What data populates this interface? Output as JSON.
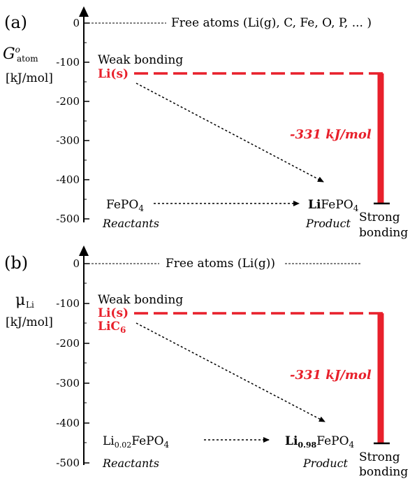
{
  "panel_a": {
    "label": "(a)",
    "ylabel_symbol": "G",
    "ylabel_sup": "o",
    "ylabel_sub": "atom",
    "ylabel_unit": "[kJ/mol]",
    "ticks": [
      "0",
      "-100",
      "-200",
      "-300",
      "-400",
      "-500"
    ],
    "top_label": "Free atoms (Li(g), C, Fe, O, P, ... )",
    "weak_bonding": "Weak bonding",
    "li_s": "Li(s)",
    "energy": "-331 kJ/mol",
    "reactant_formula_base": "FePO",
    "reactant_formula_sub": "4",
    "reactants_caption": "Reactants",
    "product_bold": "Li",
    "product_rest": "FePO",
    "product_sub": "4",
    "product_caption": "Product",
    "strong_line1": "Strong",
    "strong_line2": "bonding"
  },
  "panel_b": {
    "label": "(b)",
    "ylabel_symbol": "μ",
    "ylabel_sub": "Li",
    "ylabel_unit": "[kJ/mol]",
    "ticks": [
      "0",
      "-100",
      "-200",
      "-300",
      "-400",
      "-500"
    ],
    "top_label": "Free atoms (Li(g))",
    "weak_bonding": "Weak bonding",
    "li_s": "Li(s)",
    "lic6_base": "LiC",
    "lic6_sub": "6",
    "energy": "-331 kJ/mol",
    "reactant_li": "Li",
    "reactant_sub": "0.02",
    "reactant_rest": "FePO",
    "reactant_rest_sub": "4",
    "reactants_caption": "Reactants",
    "product_bold": "Li",
    "product_bold_sub": "0.98",
    "product_rest": "FePO",
    "product_sub": "4",
    "product_caption": "Product",
    "strong_line1": "Strong",
    "strong_line2": "bonding"
  },
  "colors": {
    "accent_red": "#e8202b",
    "ink": "#000000"
  }
}
